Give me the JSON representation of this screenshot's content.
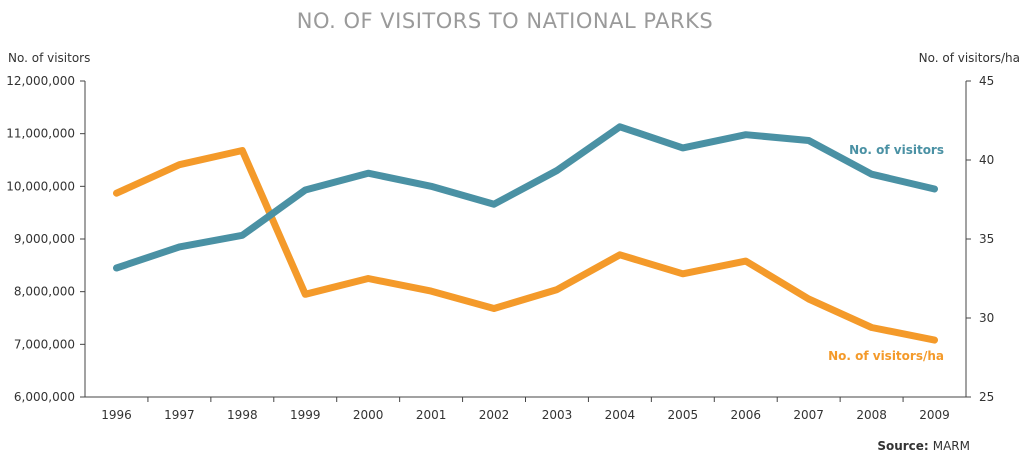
{
  "chart_data": {
    "type": "line",
    "title": "NO. OF VISITORS TO NATIONAL PARKS",
    "ylabel_left": "No. of visitors",
    "ylabel_right": "No. of visitors/ha",
    "source_label": "Source:",
    "source_value": "MARM",
    "categories": [
      "1996",
      "1997",
      "1998",
      "1999",
      "2000",
      "2001",
      "2002",
      "2003",
      "2004",
      "2005",
      "2006",
      "2007",
      "2008",
      "2009"
    ],
    "ylim_left": [
      6000000,
      12000000
    ],
    "yticks_left": [
      "6,000,000",
      "7,000,000",
      "8,000,000",
      "9,000,000",
      "10,000,000",
      "11,000,000",
      "12,000,000"
    ],
    "ylim_right": [
      25,
      45
    ],
    "yticks_right": [
      "25",
      "30",
      "35",
      "40",
      "45"
    ],
    "grid": false,
    "series": [
      {
        "name": "No. of visitors",
        "axis": "left",
        "color": "#4a91a4",
        "values": [
          8450000,
          8850000,
          9070000,
          9930000,
          10250000,
          10000000,
          9660000,
          10300000,
          11130000,
          10730000,
          10980000,
          10870000,
          10230000,
          9950000
        ]
      },
      {
        "name": "No. of visitors/ha",
        "axis": "right",
        "color": "#f49a2a",
        "values": [
          37.9,
          39.7,
          40.6,
          31.5,
          32.5,
          31.7,
          30.6,
          31.8,
          34.0,
          32.8,
          33.6,
          31.2,
          29.4,
          28.6
        ]
      }
    ]
  }
}
